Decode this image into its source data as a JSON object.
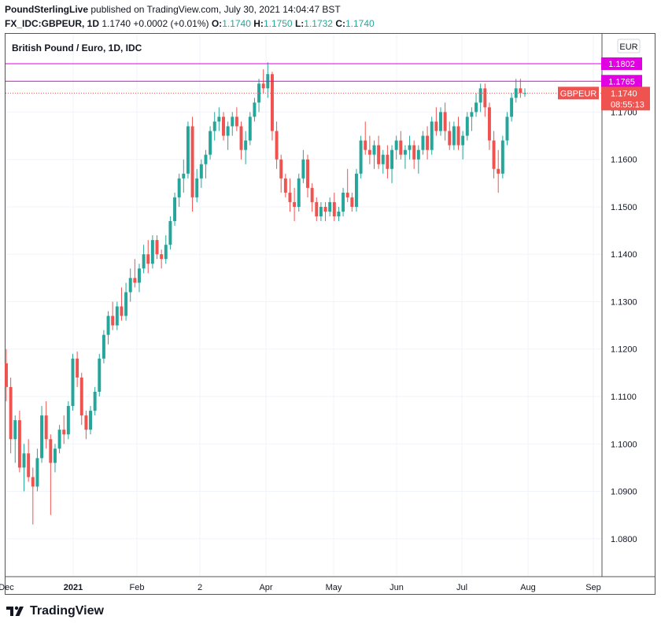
{
  "header": {
    "publisher": "PoundSterlingLive",
    "published_text": "published on TradingView.com, July 30, 2021 14:04:47 BST",
    "symbol": "FX_IDC:GBPEUR, 1D",
    "last": "1.1740",
    "change": "+0.0002 (+0.01%)",
    "o_label": "O:",
    "o_value": "1.1740",
    "h_label": "H:",
    "h_value": "1.1750",
    "l_label": "L:",
    "l_value": "1.1732",
    "c_label": "C:",
    "c_value": "1.1740"
  },
  "footer": {
    "brand": "TradingView",
    "logo_icon": "tradingview-logo-icon"
  },
  "colors": {
    "up": "#26a69a",
    "down": "#ef5350",
    "hline": "#e100e1",
    "grid": "#f0f3fa"
  },
  "chart_data": {
    "type": "candlestick",
    "title": "British Pound / Euro, 1D, IDC",
    "currency_badge": "EUR",
    "ylim": [
      1.072,
      1.1865
    ],
    "y_ticks": [
      "1.0800",
      "1.0900",
      "1.1000",
      "1.1100",
      "1.1200",
      "1.1300",
      "1.1400",
      "1.1500",
      "1.1600",
      "1.1700"
    ],
    "y_tick_values": [
      1.08,
      1.09,
      1.1,
      1.11,
      1.12,
      1.13,
      1.14,
      1.15,
      1.16,
      1.17
    ],
    "top_tick_label": "1.",
    "x_ticks": [
      "Dec",
      "2021",
      "Feb",
      "2",
      "Apr",
      "May",
      "Jun",
      "Jul",
      "Aug",
      "Sep"
    ],
    "horizontal_lines": [
      {
        "value": 1.1802,
        "label": "1.1802"
      },
      {
        "value": 1.1765,
        "label": "1.1765"
      }
    ],
    "last_price": {
      "value": 1.174,
      "label": "1.1740",
      "symbol_label": "GBPEUR",
      "countdown": "08:55:13"
    },
    "candles": [
      [
        1.117,
        1.12,
        1.109,
        1.112
      ],
      [
        1.112,
        1.114,
        1.098,
        1.101
      ],
      [
        1.101,
        1.106,
        1.096,
        1.105
      ],
      [
        1.105,
        1.107,
        1.094,
        1.095
      ],
      [
        1.095,
        1.1,
        1.09,
        1.098
      ],
      [
        1.098,
        1.101,
        1.092,
        1.093
      ],
      [
        1.093,
        1.095,
        1.083,
        1.091
      ],
      [
        1.091,
        1.099,
        1.09,
        1.097
      ],
      [
        1.097,
        1.108,
        1.096,
        1.106
      ],
      [
        1.106,
        1.109,
        1.099,
        1.101
      ],
      [
        1.101,
        1.102,
        1.085,
        1.096
      ],
      [
        1.096,
        1.1,
        1.094,
        1.099
      ],
      [
        1.099,
        1.104,
        1.098,
        1.103
      ],
      [
        1.103,
        1.106,
        1.1,
        1.102
      ],
      [
        1.102,
        1.109,
        1.101,
        1.108
      ],
      [
        1.108,
        1.119,
        1.107,
        1.118
      ],
      [
        1.118,
        1.1195,
        1.112,
        1.114
      ],
      [
        1.114,
        1.115,
        1.104,
        1.106
      ],
      [
        1.106,
        1.107,
        1.101,
        1.103
      ],
      [
        1.103,
        1.108,
        1.102,
        1.107
      ],
      [
        1.107,
        1.112,
        1.106,
        1.111
      ],
      [
        1.111,
        1.119,
        1.11,
        1.118
      ],
      [
        1.118,
        1.124,
        1.117,
        1.123
      ],
      [
        1.123,
        1.128,
        1.121,
        1.127
      ],
      [
        1.127,
        1.13,
        1.124,
        1.125
      ],
      [
        1.125,
        1.13,
        1.124,
        1.129
      ],
      [
        1.129,
        1.133,
        1.126,
        1.127
      ],
      [
        1.127,
        1.134,
        1.126,
        1.132
      ],
      [
        1.132,
        1.137,
        1.13,
        1.135
      ],
      [
        1.135,
        1.139,
        1.133,
        1.134
      ],
      [
        1.134,
        1.138,
        1.132,
        1.137
      ],
      [
        1.137,
        1.142,
        1.136,
        1.14
      ],
      [
        1.14,
        1.143,
        1.136,
        1.138
      ],
      [
        1.138,
        1.144,
        1.137,
        1.143
      ],
      [
        1.143,
        1.144,
        1.139,
        1.14
      ],
      [
        1.14,
        1.141,
        1.137,
        1.139
      ],
      [
        1.139,
        1.144,
        1.138,
        1.142
      ],
      [
        1.142,
        1.148,
        1.141,
        1.147
      ],
      [
        1.147,
        1.153,
        1.146,
        1.152
      ],
      [
        1.152,
        1.157,
        1.15,
        1.156
      ],
      [
        1.156,
        1.16,
        1.153,
        1.157
      ],
      [
        1.157,
        1.168,
        1.156,
        1.167
      ],
      [
        1.167,
        1.169,
        1.149,
        1.152
      ],
      [
        1.152,
        1.158,
        1.151,
        1.156
      ],
      [
        1.156,
        1.16,
        1.154,
        1.159
      ],
      [
        1.159,
        1.162,
        1.156,
        1.161
      ],
      [
        1.161,
        1.167,
        1.16,
        1.166
      ],
      [
        1.166,
        1.17,
        1.164,
        1.168
      ],
      [
        1.168,
        1.171,
        1.166,
        1.169
      ],
      [
        1.169,
        1.17,
        1.164,
        1.165
      ],
      [
        1.165,
        1.168,
        1.162,
        1.167
      ],
      [
        1.167,
        1.17,
        1.165,
        1.169
      ],
      [
        1.169,
        1.171,
        1.166,
        1.167
      ],
      [
        1.167,
        1.168,
        1.16,
        1.162
      ],
      [
        1.162,
        1.166,
        1.159,
        1.164
      ],
      [
        1.164,
        1.17,
        1.163,
        1.169
      ],
      [
        1.169,
        1.173,
        1.168,
        1.172
      ],
      [
        1.172,
        1.177,
        1.17,
        1.176
      ],
      [
        1.176,
        1.179,
        1.174,
        1.175
      ],
      [
        1.175,
        1.1805,
        1.173,
        1.178
      ],
      [
        1.178,
        1.1785,
        1.164,
        1.166
      ],
      [
        1.166,
        1.168,
        1.158,
        1.16
      ],
      [
        1.16,
        1.161,
        1.153,
        1.156
      ],
      [
        1.156,
        1.157,
        1.152,
        1.153
      ],
      [
        1.153,
        1.156,
        1.149,
        1.151
      ],
      [
        1.151,
        1.154,
        1.147,
        1.15
      ],
      [
        1.15,
        1.157,
        1.149,
        1.156
      ],
      [
        1.156,
        1.162,
        1.155,
        1.16
      ],
      [
        1.16,
        1.161,
        1.152,
        1.154
      ],
      [
        1.154,
        1.155,
        1.149,
        1.151
      ],
      [
        1.151,
        1.152,
        1.147,
        1.148
      ],
      [
        1.148,
        1.151,
        1.147,
        1.15
      ],
      [
        1.15,
        1.151,
        1.147,
        1.149
      ],
      [
        1.149,
        1.152,
        1.148,
        1.151
      ],
      [
        1.151,
        1.153,
        1.147,
        1.148
      ],
      [
        1.148,
        1.15,
        1.147,
        1.149
      ],
      [
        1.149,
        1.154,
        1.148,
        1.153
      ],
      [
        1.153,
        1.158,
        1.151,
        1.152
      ],
      [
        1.152,
        1.153,
        1.149,
        1.15
      ],
      [
        1.15,
        1.158,
        1.149,
        1.157
      ],
      [
        1.157,
        1.165,
        1.156,
        1.164
      ],
      [
        1.164,
        1.168,
        1.161,
        1.162
      ],
      [
        1.162,
        1.165,
        1.159,
        1.161
      ],
      [
        1.161,
        1.164,
        1.158,
        1.163
      ],
      [
        1.163,
        1.165,
        1.158,
        1.159
      ],
      [
        1.159,
        1.162,
        1.157,
        1.161
      ],
      [
        1.161,
        1.163,
        1.156,
        1.158
      ],
      [
        1.158,
        1.163,
        1.155,
        1.162
      ],
      [
        1.162,
        1.165,
        1.16,
        1.164
      ],
      [
        1.164,
        1.166,
        1.16,
        1.161
      ],
      [
        1.161,
        1.163,
        1.158,
        1.162
      ],
      [
        1.162,
        1.165,
        1.16,
        1.163
      ],
      [
        1.163,
        1.164,
        1.158,
        1.16
      ],
      [
        1.16,
        1.163,
        1.157,
        1.162
      ],
      [
        1.162,
        1.166,
        1.161,
        1.165
      ],
      [
        1.165,
        1.167,
        1.16,
        1.162
      ],
      [
        1.162,
        1.169,
        1.161,
        1.168
      ],
      [
        1.168,
        1.171,
        1.165,
        1.166
      ],
      [
        1.166,
        1.171,
        1.165,
        1.17
      ],
      [
        1.17,
        1.172,
        1.164,
        1.166
      ],
      [
        1.166,
        1.168,
        1.162,
        1.163
      ],
      [
        1.163,
        1.168,
        1.162,
        1.167
      ],
      [
        1.167,
        1.169,
        1.162,
        1.163
      ],
      [
        1.163,
        1.166,
        1.16,
        1.165
      ],
      [
        1.165,
        1.17,
        1.164,
        1.169
      ],
      [
        1.169,
        1.171,
        1.166,
        1.17
      ],
      [
        1.17,
        1.174,
        1.169,
        1.172
      ],
      [
        1.172,
        1.176,
        1.17,
        1.175
      ],
      [
        1.175,
        1.176,
        1.169,
        1.171
      ],
      [
        1.171,
        1.172,
        1.162,
        1.164
      ],
      [
        1.164,
        1.166,
        1.156,
        1.158
      ],
      [
        1.158,
        1.162,
        1.153,
        1.157
      ],
      [
        1.157,
        1.165,
        1.156,
        1.164
      ],
      [
        1.164,
        1.17,
        1.163,
        1.169
      ],
      [
        1.169,
        1.174,
        1.168,
        1.173
      ],
      [
        1.173,
        1.177,
        1.172,
        1.175
      ],
      [
        1.175,
        1.177,
        1.173,
        1.174
      ],
      [
        1.174,
        1.175,
        1.1732,
        1.174
      ]
    ]
  }
}
